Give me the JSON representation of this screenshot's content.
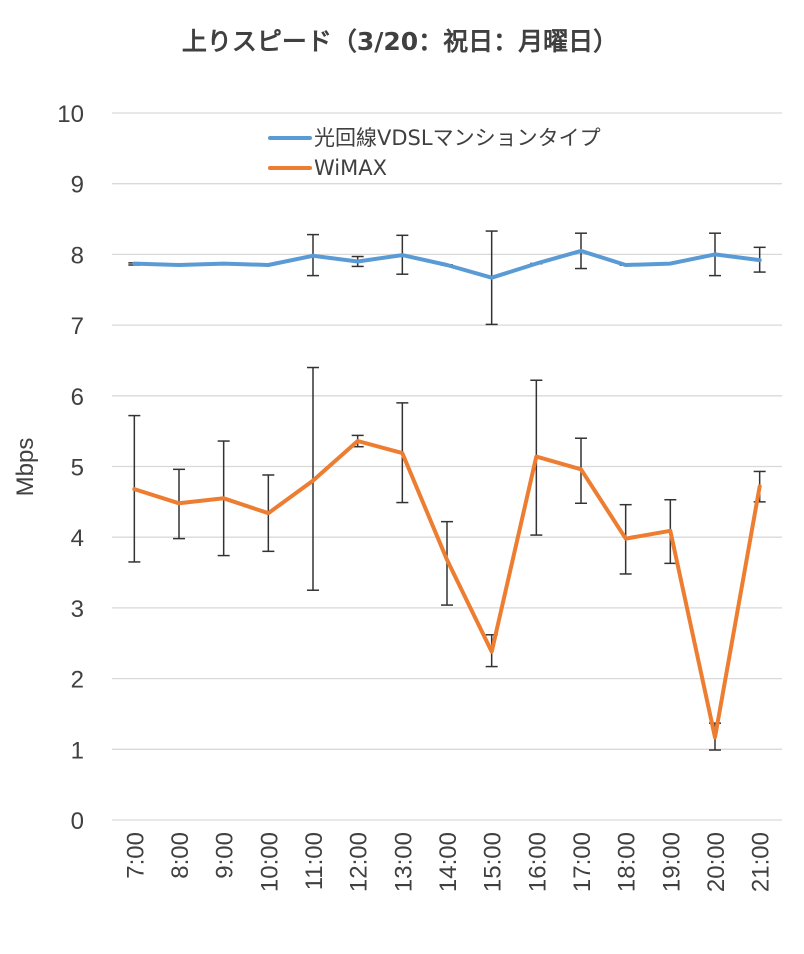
{
  "chart_data": {
    "type": "line",
    "title": "上りスピード（3/20：祝日：月曜日）",
    "xlabel": "",
    "ylabel": "Mbps",
    "ylim": [
      0,
      10
    ],
    "yticks": [
      "0",
      "1",
      "2",
      "3",
      "4",
      "5",
      "6",
      "7",
      "8",
      "9",
      "10"
    ],
    "categories": [
      "7:00",
      "8:00",
      "9:00",
      "10:00",
      "11:00",
      "12:00",
      "13:00",
      "14:00",
      "15:00",
      "16:00",
      "17:00",
      "18:00",
      "19:00",
      "20:00",
      "21:00"
    ],
    "grid": "horizontal",
    "legend_position": "top",
    "series": [
      {
        "name": "光回線VDSLマンションタイプ",
        "color": "#5B9BD5",
        "values": [
          7.87,
          7.85,
          7.87,
          7.85,
          7.98,
          7.9,
          7.99,
          7.85,
          7.67,
          7.87,
          8.05,
          7.85,
          7.87,
          8.0,
          7.92
        ],
        "error_low": [
          7.85,
          7.85,
          7.87,
          7.85,
          7.7,
          7.83,
          7.72,
          7.85,
          7.01,
          7.87,
          7.8,
          7.85,
          7.87,
          7.7,
          7.75
        ],
        "error_high": [
          7.88,
          7.85,
          7.87,
          7.85,
          8.28,
          7.97,
          8.27,
          7.85,
          8.33,
          7.87,
          8.3,
          7.85,
          7.87,
          8.3,
          8.1
        ]
      },
      {
        "name": "WiMAX",
        "color": "#ED7D31",
        "values": [
          4.68,
          4.48,
          4.55,
          4.34,
          4.8,
          5.36,
          5.19,
          3.68,
          2.38,
          5.14,
          4.96,
          3.98,
          4.09,
          1.17,
          4.72
        ],
        "error_low": [
          3.65,
          3.98,
          3.74,
          3.8,
          3.25,
          5.28,
          4.49,
          3.04,
          2.17,
          4.03,
          4.48,
          3.48,
          3.63,
          0.99,
          4.5
        ],
        "error_high": [
          5.72,
          4.96,
          5.36,
          4.88,
          6.4,
          5.44,
          5.9,
          4.22,
          2.62,
          6.22,
          5.4,
          4.46,
          4.53,
          1.37,
          4.93
        ]
      }
    ]
  }
}
